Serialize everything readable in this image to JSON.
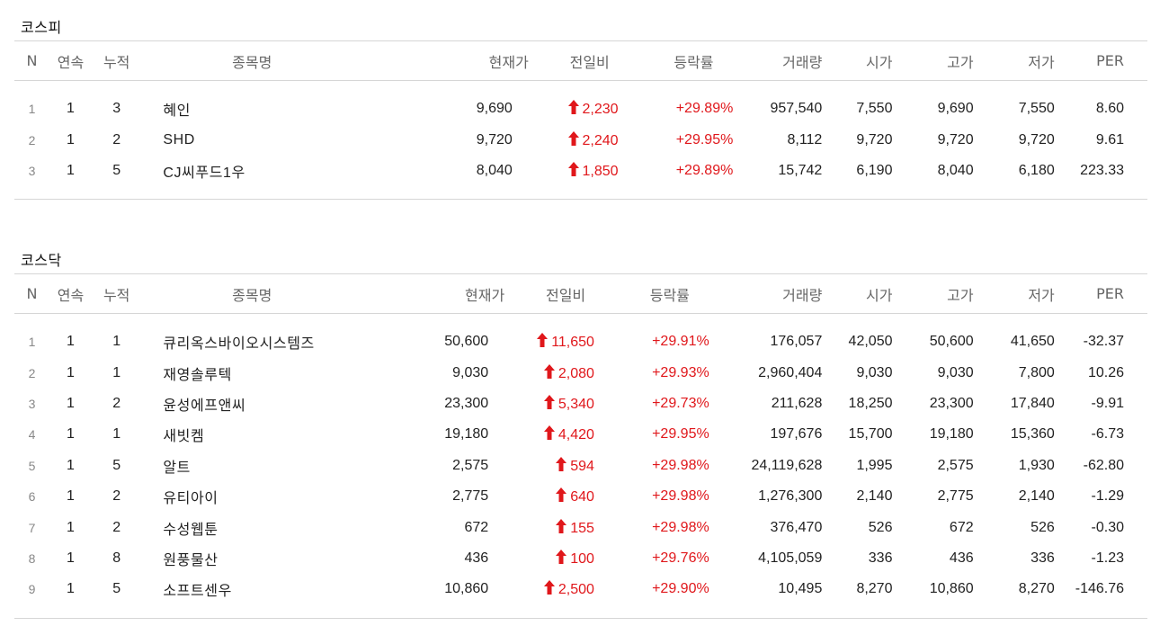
{
  "colors": {
    "rise": "#e0171b",
    "header_text": "#666666",
    "border": "#d6d6d6"
  },
  "columns": [
    "N",
    "연속",
    "누적",
    "종목명",
    "현재가",
    "전일비",
    "등락률",
    "거래량",
    "시가",
    "고가",
    "저가",
    "PER"
  ],
  "change_icon": "arrow-up-icon",
  "kospi": {
    "title": "코스피",
    "rows": [
      {
        "n": "1",
        "streak": "1",
        "cumulative": "3",
        "name": "혜인",
        "price": "9,690",
        "change": "2,230",
        "rate": "+29.89%",
        "volume": "957,540",
        "open": "7,550",
        "high": "9,690",
        "low": "7,550",
        "per": "8.60"
      },
      {
        "n": "2",
        "streak": "1",
        "cumulative": "2",
        "name": "SHD",
        "price": "9,720",
        "change": "2,240",
        "rate": "+29.95%",
        "volume": "8,112",
        "open": "9,720",
        "high": "9,720",
        "low": "9,720",
        "per": "9.61"
      },
      {
        "n": "3",
        "streak": "1",
        "cumulative": "5",
        "name": "CJ씨푸드1우",
        "price": "8,040",
        "change": "1,850",
        "rate": "+29.89%",
        "volume": "15,742",
        "open": "6,190",
        "high": "8,040",
        "low": "6,180",
        "per": "223.33"
      }
    ]
  },
  "kosdaq": {
    "title": "코스닥",
    "rows": [
      {
        "n": "1",
        "streak": "1",
        "cumulative": "1",
        "name": "큐리옥스바이오시스템즈",
        "price": "50,600",
        "change": "11,650",
        "rate": "+29.91%",
        "volume": "176,057",
        "open": "42,050",
        "high": "50,600",
        "low": "41,650",
        "per": "-32.37"
      },
      {
        "n": "2",
        "streak": "1",
        "cumulative": "1",
        "name": "재영솔루텍",
        "price": "9,030",
        "change": "2,080",
        "rate": "+29.93%",
        "volume": "2,960,404",
        "open": "9,030",
        "high": "9,030",
        "low": "7,800",
        "per": "10.26"
      },
      {
        "n": "3",
        "streak": "1",
        "cumulative": "2",
        "name": "윤성에프앤씨",
        "price": "23,300",
        "change": "5,340",
        "rate": "+29.73%",
        "volume": "211,628",
        "open": "18,250",
        "high": "23,300",
        "low": "17,840",
        "per": "-9.91"
      },
      {
        "n": "4",
        "streak": "1",
        "cumulative": "1",
        "name": "새빗켐",
        "price": "19,180",
        "change": "4,420",
        "rate": "+29.95%",
        "volume": "197,676",
        "open": "15,700",
        "high": "19,180",
        "low": "15,360",
        "per": "-6.73"
      },
      {
        "n": "5",
        "streak": "1",
        "cumulative": "5",
        "name": "알트",
        "price": "2,575",
        "change": "594",
        "rate": "+29.98%",
        "volume": "24,119,628",
        "open": "1,995",
        "high": "2,575",
        "low": "1,930",
        "per": "-62.80"
      },
      {
        "n": "6",
        "streak": "1",
        "cumulative": "2",
        "name": "유티아이",
        "price": "2,775",
        "change": "640",
        "rate": "+29.98%",
        "volume": "1,276,300",
        "open": "2,140",
        "high": "2,775",
        "low": "2,140",
        "per": "-1.29"
      },
      {
        "n": "7",
        "streak": "1",
        "cumulative": "2",
        "name": "수성웹툰",
        "price": "672",
        "change": "155",
        "rate": "+29.98%",
        "volume": "376,470",
        "open": "526",
        "high": "672",
        "low": "526",
        "per": "-0.30"
      },
      {
        "n": "8",
        "streak": "1",
        "cumulative": "8",
        "name": "원풍물산",
        "price": "436",
        "change": "100",
        "rate": "+29.76%",
        "volume": "4,105,059",
        "open": "336",
        "high": "436",
        "low": "336",
        "per": "-1.23"
      },
      {
        "n": "9",
        "streak": "1",
        "cumulative": "5",
        "name": "소프트센우",
        "price": "10,860",
        "change": "2,500",
        "rate": "+29.90%",
        "volume": "10,495",
        "open": "8,270",
        "high": "10,860",
        "low": "8,270",
        "per": "-146.76"
      }
    ]
  }
}
